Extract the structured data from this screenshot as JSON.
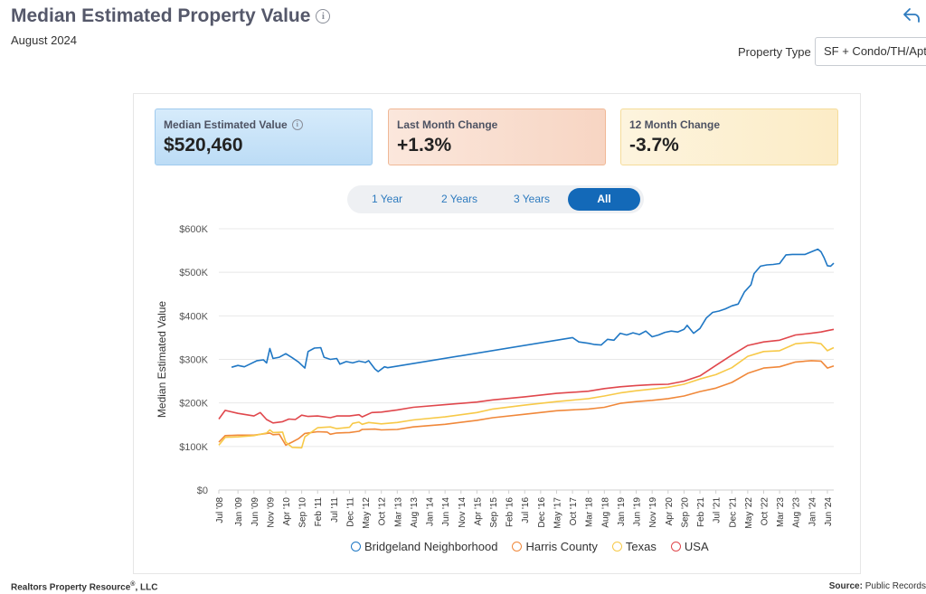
{
  "header": {
    "title": "Median Estimated Property Value",
    "subtitle": "August 2024",
    "property_type_label": "Property Type",
    "property_type_value": "SF + Condo/TH/Apt"
  },
  "cards": [
    {
      "label": "Median Estimated Value",
      "value": "$520,460",
      "has_info": true
    },
    {
      "label": "Last Month Change",
      "value": "+1.3%"
    },
    {
      "label": "12 Month Change",
      "value": "-3.7%"
    }
  ],
  "range_buttons": [
    "1 Year",
    "2 Years",
    "3 Years",
    "All"
  ],
  "active_range": "All",
  "footer": {
    "left": "Realtors Property Resource",
    "left_mark": "®",
    "left_suffix": ", LLC",
    "right_label": "Source:",
    "right_value": "Public Records"
  },
  "colors": {
    "Bridgeland Neighborhood": "#1f77c4",
    "Harris County": "#f0883a",
    "Texas": "#f7c948",
    "USA": "#e0474c"
  },
  "chart_data": {
    "type": "line",
    "ylabel": "Median Estimated Value",
    "xlabel": "",
    "ylim": [
      0,
      600000
    ],
    "yticks": [
      0,
      100000,
      200000,
      300000,
      400000,
      500000,
      600000
    ],
    "ytick_labels": [
      "$0",
      "$100K",
      "$200K",
      "$300K",
      "$400K",
      "$500K",
      "$600K"
    ],
    "xlim": [
      "2008-07",
      "2024-08"
    ],
    "xticks": [
      "2008-07",
      "2009-01",
      "2009-06",
      "2009-11",
      "2010-04",
      "2010-09",
      "2011-02",
      "2011-07",
      "2011-12",
      "2012-05",
      "2012-10",
      "2013-03",
      "2013-08",
      "2014-01",
      "2014-06",
      "2014-11",
      "2015-04",
      "2015-09",
      "2016-02",
      "2016-07",
      "2016-12",
      "2017-05",
      "2017-10",
      "2018-03",
      "2018-08",
      "2019-01",
      "2019-06",
      "2019-11",
      "2020-04",
      "2020-09",
      "2021-02",
      "2021-07",
      "2021-12",
      "2022-05",
      "2022-10",
      "2023-03",
      "2023-08",
      "2024-01",
      "2024-06"
    ],
    "xtick_labels": [
      "Jul '08",
      "Jan '09",
      "Jun '09",
      "Nov '09",
      "Apr '10",
      "Sep '10",
      "Feb '11",
      "Jul '11",
      "Dec '11",
      "May '12",
      "Oct '12",
      "Mar '13",
      "Aug '13",
      "Jan '14",
      "Jun '14",
      "Nov '14",
      "Apr '15",
      "Sep '15",
      "Feb '16",
      "Jul '16",
      "Dec '16",
      "May '17",
      "Oct '17",
      "Mar '18",
      "Aug '18",
      "Jan '19",
      "Jun '19",
      "Nov '19",
      "Apr '20",
      "Sep '20",
      "Feb '21",
      "Jul '21",
      "Dec '21",
      "May '22",
      "Oct '22",
      "Mar '23",
      "Aug '23",
      "Jan '24",
      "Jun '24"
    ],
    "legend_position": "bottom",
    "grid": true,
    "series": [
      {
        "name": "Bridgeland Neighborhood",
        "points": [
          [
            "2008-11",
            282000
          ],
          [
            "2009-01",
            286000
          ],
          [
            "2009-03",
            283000
          ],
          [
            "2009-05",
            290000
          ],
          [
            "2009-07",
            297000
          ],
          [
            "2009-09",
            299000
          ],
          [
            "2009-10",
            292000
          ],
          [
            "2009-11",
            325000
          ],
          [
            "2009-12",
            302000
          ],
          [
            "2010-02",
            305000
          ],
          [
            "2010-04",
            313000
          ],
          [
            "2010-06",
            304000
          ],
          [
            "2010-08",
            294000
          ],
          [
            "2010-10",
            280000
          ],
          [
            "2010-11",
            318000
          ],
          [
            "2011-01",
            326000
          ],
          [
            "2011-03",
            327000
          ],
          [
            "2011-04",
            305000
          ],
          [
            "2011-06",
            300000
          ],
          [
            "2011-08",
            302000
          ],
          [
            "2011-09",
            289000
          ],
          [
            "2011-11",
            295000
          ],
          [
            "2012-01",
            292000
          ],
          [
            "2012-03",
            296000
          ],
          [
            "2012-05",
            293000
          ],
          [
            "2012-06",
            297000
          ],
          [
            "2012-08",
            278000
          ],
          [
            "2012-09",
            272000
          ],
          [
            "2012-11",
            283000
          ],
          [
            "2012-12",
            281000
          ],
          [
            "2017-10",
            350000
          ],
          [
            "2017-12",
            340000
          ],
          [
            "2018-03",
            337000
          ],
          [
            "2018-05",
            334000
          ],
          [
            "2018-07",
            333000
          ],
          [
            "2018-09",
            346000
          ],
          [
            "2018-11",
            344000
          ],
          [
            "2019-01",
            360000
          ],
          [
            "2019-03",
            356000
          ],
          [
            "2019-05",
            361000
          ],
          [
            "2019-07",
            357000
          ],
          [
            "2019-09",
            365000
          ],
          [
            "2019-11",
            352000
          ],
          [
            "2020-01",
            356000
          ],
          [
            "2020-03",
            362000
          ],
          [
            "2020-05",
            365000
          ],
          [
            "2020-07",
            363000
          ],
          [
            "2020-09",
            369000
          ],
          [
            "2020-10",
            378000
          ],
          [
            "2020-12",
            360000
          ],
          [
            "2021-02",
            371000
          ],
          [
            "2021-04",
            395000
          ],
          [
            "2021-06",
            408000
          ],
          [
            "2021-08",
            411000
          ],
          [
            "2021-10",
            416000
          ],
          [
            "2021-12",
            423000
          ],
          [
            "2022-02",
            427000
          ],
          [
            "2022-04",
            455000
          ],
          [
            "2022-06",
            471000
          ],
          [
            "2022-07",
            497000
          ],
          [
            "2022-09",
            514000
          ],
          [
            "2022-11",
            517000
          ],
          [
            "2023-01",
            518000
          ],
          [
            "2023-03",
            520000
          ],
          [
            "2023-05",
            540000
          ],
          [
            "2023-07",
            541000
          ],
          [
            "2023-09",
            541000
          ],
          [
            "2023-11",
            541000
          ],
          [
            "2024-01",
            547000
          ],
          [
            "2024-03",
            553000
          ],
          [
            "2024-04",
            547000
          ],
          [
            "2024-05",
            533000
          ],
          [
            "2024-06",
            515000
          ],
          [
            "2024-07",
            514000
          ],
          [
            "2024-08",
            521000
          ]
        ]
      },
      {
        "name": "Harris County",
        "points": [
          [
            "2008-07",
            110000
          ],
          [
            "2008-09",
            125000
          ],
          [
            "2009-01",
            126000
          ],
          [
            "2009-06",
            126000
          ],
          [
            "2009-11",
            131000
          ],
          [
            "2009-12",
            127000
          ],
          [
            "2010-02",
            128000
          ],
          [
            "2010-04",
            103000
          ],
          [
            "2010-06",
            110000
          ],
          [
            "2010-08",
            118000
          ],
          [
            "2010-10",
            130000
          ],
          [
            "2011-02",
            134000
          ],
          [
            "2011-05",
            133000
          ],
          [
            "2011-06",
            128000
          ],
          [
            "2011-08",
            131000
          ],
          [
            "2011-12",
            132000
          ],
          [
            "2012-03",
            135000
          ],
          [
            "2012-04",
            139000
          ],
          [
            "2012-08",
            140000
          ],
          [
            "2012-10",
            138000
          ],
          [
            "2013-03",
            139000
          ],
          [
            "2013-08",
            145000
          ],
          [
            "2014-06",
            151000
          ],
          [
            "2015-04",
            160000
          ],
          [
            "2015-09",
            166000
          ],
          [
            "2016-07",
            174000
          ],
          [
            "2017-05",
            182000
          ],
          [
            "2018-03",
            186000
          ],
          [
            "2018-08",
            190000
          ],
          [
            "2019-01",
            199000
          ],
          [
            "2019-06",
            203000
          ],
          [
            "2019-11",
            206000
          ],
          [
            "2020-04",
            210000
          ],
          [
            "2020-09",
            216000
          ],
          [
            "2021-02",
            226000
          ],
          [
            "2021-07",
            234000
          ],
          [
            "2021-12",
            247000
          ],
          [
            "2022-05",
            268000
          ],
          [
            "2022-10",
            280000
          ],
          [
            "2023-03",
            283000
          ],
          [
            "2023-08",
            294000
          ],
          [
            "2024-01",
            297000
          ],
          [
            "2024-04",
            296000
          ],
          [
            "2024-06",
            280000
          ],
          [
            "2024-08",
            285000
          ]
        ]
      },
      {
        "name": "Texas",
        "points": [
          [
            "2008-07",
            103000
          ],
          [
            "2008-09",
            121000
          ],
          [
            "2009-01",
            122000
          ],
          [
            "2009-06",
            125000
          ],
          [
            "2009-10",
            131000
          ],
          [
            "2009-11",
            138000
          ],
          [
            "2009-12",
            132000
          ],
          [
            "2010-03",
            133000
          ],
          [
            "2010-04",
            110000
          ],
          [
            "2010-06",
            98000
          ],
          [
            "2010-09",
            97000
          ],
          [
            "2010-10",
            122000
          ],
          [
            "2011-02",
            143000
          ],
          [
            "2011-06",
            145000
          ],
          [
            "2011-08",
            141000
          ],
          [
            "2011-12",
            144000
          ],
          [
            "2012-01",
            153000
          ],
          [
            "2012-03",
            156000
          ],
          [
            "2012-04",
            151000
          ],
          [
            "2012-06",
            155000
          ],
          [
            "2012-10",
            152000
          ],
          [
            "2013-03",
            155000
          ],
          [
            "2013-08",
            161000
          ],
          [
            "2014-06",
            168000
          ],
          [
            "2015-04",
            178000
          ],
          [
            "2015-09",
            186000
          ],
          [
            "2016-07",
            195000
          ],
          [
            "2017-05",
            203000
          ],
          [
            "2018-03",
            210000
          ],
          [
            "2018-08",
            216000
          ],
          [
            "2019-01",
            223000
          ],
          [
            "2019-06",
            228000
          ],
          [
            "2019-11",
            232000
          ],
          [
            "2020-04",
            236000
          ],
          [
            "2020-09",
            243000
          ],
          [
            "2021-02",
            255000
          ],
          [
            "2021-07",
            265000
          ],
          [
            "2021-12",
            281000
          ],
          [
            "2022-05",
            307000
          ],
          [
            "2022-10",
            318000
          ],
          [
            "2023-03",
            320000
          ],
          [
            "2023-08",
            336000
          ],
          [
            "2024-01",
            339000
          ],
          [
            "2024-04",
            336000
          ],
          [
            "2024-06",
            320000
          ],
          [
            "2024-08",
            327000
          ]
        ]
      },
      {
        "name": "USA",
        "points": [
          [
            "2008-07",
            163000
          ],
          [
            "2008-09",
            183000
          ],
          [
            "2009-01",
            176000
          ],
          [
            "2009-06",
            170000
          ],
          [
            "2009-08",
            178000
          ],
          [
            "2009-10",
            162000
          ],
          [
            "2009-12",
            154000
          ],
          [
            "2010-03",
            157000
          ],
          [
            "2010-05",
            163000
          ],
          [
            "2010-07",
            162000
          ],
          [
            "2010-09",
            172000
          ],
          [
            "2010-11",
            169000
          ],
          [
            "2011-02",
            170000
          ],
          [
            "2011-06",
            166000
          ],
          [
            "2011-08",
            170000
          ],
          [
            "2011-12",
            170000
          ],
          [
            "2012-03",
            173000
          ],
          [
            "2012-04",
            168000
          ],
          [
            "2012-07",
            178000
          ],
          [
            "2012-10",
            179000
          ],
          [
            "2013-03",
            184000
          ],
          [
            "2013-08",
            190000
          ],
          [
            "2014-06",
            196000
          ],
          [
            "2015-04",
            202000
          ],
          [
            "2015-09",
            207000
          ],
          [
            "2016-07",
            214000
          ],
          [
            "2017-05",
            222000
          ],
          [
            "2018-03",
            227000
          ],
          [
            "2018-08",
            233000
          ],
          [
            "2019-01",
            237000
          ],
          [
            "2019-06",
            240000
          ],
          [
            "2019-11",
            242000
          ],
          [
            "2020-04",
            243000
          ],
          [
            "2020-09",
            250000
          ],
          [
            "2021-02",
            262000
          ],
          [
            "2021-07",
            286000
          ],
          [
            "2021-12",
            310000
          ],
          [
            "2022-05",
            332000
          ],
          [
            "2022-10",
            340000
          ],
          [
            "2023-03",
            344000
          ],
          [
            "2023-08",
            356000
          ],
          [
            "2024-01",
            360000
          ],
          [
            "2024-04",
            363000
          ],
          [
            "2024-06",
            366000
          ],
          [
            "2024-08",
            369000
          ]
        ]
      }
    ]
  }
}
